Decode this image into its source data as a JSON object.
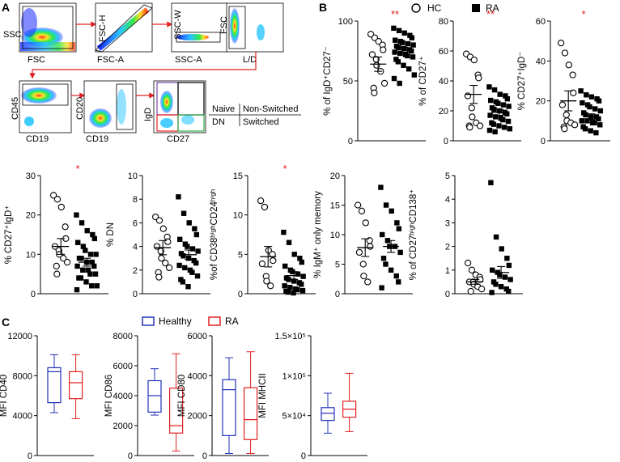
{
  "panel_labels": {
    "a": "A",
    "b": "B",
    "c": "C"
  },
  "flow": {
    "gates": [
      {
        "x": "FSC",
        "y": "SSC"
      },
      {
        "x": "FSC-A",
        "y": "FSC-H"
      },
      {
        "x": "SSC-A",
        "y": "SSC-W"
      },
      {
        "x": "L/D",
        "y": "FSC"
      },
      {
        "x": "CD19",
        "y": "CD45"
      },
      {
        "x": "CD19",
        "y": "CD20"
      },
      {
        "x": "CD27",
        "y": "IgD"
      }
    ],
    "quadrant_key": {
      "naive": "Naive",
      "non_switched": "Non-Switched",
      "dn": "DN",
      "switched": "Switched"
    },
    "colors": {
      "naive": "#7a3fb0",
      "non_switched": "#000000",
      "dn": "#e02020",
      "switched": "#2aa84a",
      "arrow": "#e02020"
    }
  },
  "legend_b": {
    "hc": "HC",
    "ra": "RA"
  },
  "legend_c": {
    "healthy": "Healthy",
    "ra": "RA",
    "healthy_color": "#2233bb",
    "ra_color": "#e02020"
  },
  "chart_data": [
    {
      "type": "scatter",
      "ylabel": "% of IgD⁺CD27⁻",
      "ylim": [
        0,
        100
      ],
      "yticks": [
        "0",
        "50",
        "100"
      ],
      "significance": "**",
      "series": [
        {
          "name": "HC",
          "values": [
            89,
            86,
            83,
            80,
            76,
            72,
            68,
            63,
            58,
            48,
            44,
            40
          ],
          "mean": 64,
          "sem": 6
        },
        {
          "name": "RA",
          "values": [
            94,
            92,
            90,
            88,
            86,
            84,
            83,
            82,
            81,
            80,
            79,
            78,
            77,
            76,
            75,
            74,
            73,
            72,
            71,
            70,
            68,
            66,
            63,
            60,
            55,
            52,
            48
          ],
          "mean": 76,
          "sem": 2
        }
      ]
    },
    {
      "type": "scatter",
      "ylabel": "% of CD27⁺",
      "ylim": [
        0,
        80
      ],
      "yticks": [
        "0",
        "20",
        "40",
        "60",
        "80"
      ],
      "significance": "**",
      "series": [
        {
          "name": "HC",
          "values": [
            58,
            56,
            54,
            44,
            42,
            30,
            22,
            16,
            12,
            10,
            10,
            9
          ],
          "mean": 31,
          "sem": 6
        },
        {
          "name": "RA",
          "values": [
            36,
            34,
            31,
            30,
            28,
            27,
            26,
            25,
            24,
            23,
            22,
            21,
            20,
            19,
            18,
            17,
            16,
            15,
            14,
            13,
            12,
            11,
            10,
            9,
            8,
            7,
            6
          ],
          "mean": 19,
          "sem": 2
        }
      ]
    },
    {
      "type": "scatter",
      "ylabel": "% CD27⁺IgD⁻",
      "ylim": [
        0,
        60
      ],
      "yticks": [
        "0",
        "20",
        "40",
        "60"
      ],
      "significance": "*",
      "series": [
        {
          "name": "HC",
          "values": [
            49,
            44,
            38,
            33,
            24,
            18,
            13,
            10,
            9,
            8,
            7,
            6
          ],
          "mean": 20,
          "sem": 5
        },
        {
          "name": "RA",
          "values": [
            25,
            23,
            22,
            21,
            20,
            19,
            18,
            17,
            16,
            15,
            14,
            13,
            12,
            12,
            11,
            10,
            10,
            9,
            9,
            8,
            7,
            6,
            5,
            4
          ],
          "mean": 12,
          "sem": 1.5
        }
      ]
    },
    {
      "type": "scatter",
      "ylabel": "% CD27⁺IgD⁺",
      "ylim": [
        0,
        30
      ],
      "yticks": [
        "0",
        "10",
        "20",
        "30"
      ],
      "significance": "*",
      "series": [
        {
          "name": "HC",
          "values": [
            25,
            24,
            22,
            17,
            14,
            12,
            11,
            10,
            9,
            8,
            7,
            5
          ],
          "mean": 12,
          "sem": 2
        },
        {
          "name": "RA",
          "values": [
            20,
            18,
            16,
            15,
            14,
            13,
            12,
            11,
            10,
            10,
            9,
            9,
            8,
            8,
            7,
            7,
            6,
            6,
            5,
            5,
            4,
            4,
            3,
            2,
            2,
            1
          ],
          "mean": 8,
          "sem": 1
        }
      ]
    },
    {
      "type": "scatter",
      "ylabel": "% DN",
      "ylim": [
        0,
        10
      ],
      "yticks": [
        "0",
        "2",
        "4",
        "6",
        "8",
        "10"
      ],
      "significance": "",
      "series": [
        {
          "name": "HC",
          "values": [
            6.5,
            6.2,
            5.5,
            4.8,
            4.4,
            4.0,
            3.6,
            3.0,
            2.6,
            2.2,
            1.8,
            1.4
          ],
          "mean": 3.9,
          "sem": 0.6
        },
        {
          "name": "RA",
          "values": [
            8.2,
            6.8,
            6.0,
            5.5,
            5.0,
            4.6,
            4.2,
            4.0,
            3.8,
            3.6,
            3.4,
            3.2,
            3.0,
            2.8,
            2.6,
            2.4,
            2.2,
            2.0,
            1.8,
            1.5,
            1.2,
            1.0,
            0.6
          ],
          "mean": 3.3,
          "sem": 0.4
        }
      ]
    },
    {
      "type": "scatter",
      "ylabel": "%of CD38ʰⁱᵍʰCD24ʰⁱᵍʰ",
      "ylim": [
        0,
        15
      ],
      "yticks": [
        "0",
        "5",
        "10",
        "15"
      ],
      "significance": "*",
      "series": [
        {
          "name": "HC",
          "values": [
            11.8,
            11.0,
            5.5,
            5.0,
            4.2,
            3.8,
            2.2,
            1.6,
            1.0
          ],
          "mean": 4.7,
          "sem": 1.3
        },
        {
          "name": "RA",
          "values": [
            7.8,
            6.5,
            5.0,
            4.5,
            4.0,
            3.5,
            3.0,
            2.8,
            2.5,
            2.2,
            2.0,
            1.8,
            1.6,
            1.4,
            1.2,
            1.0,
            0.8,
            0.6,
            0.5,
            0.4,
            0.3,
            0.2,
            0.1
          ],
          "mean": 2.3,
          "sem": 0.5
        }
      ]
    },
    {
      "type": "scatter",
      "ylabel": "% IgM⁺ only memory",
      "ylim": [
        0,
        20
      ],
      "yticks": [
        "0",
        "5",
        "10",
        "15",
        "20"
      ],
      "significance": "",
      "series": [
        {
          "name": "HC",
          "values": [
            15,
            14,
            12,
            9,
            8,
            7,
            5,
            3,
            2
          ],
          "mean": 7.8,
          "sem": 1.5
        },
        {
          "name": "RA",
          "values": [
            18,
            15,
            14,
            12,
            11,
            10,
            9,
            8,
            8,
            7,
            6,
            5,
            4,
            3,
            2,
            1
          ],
          "mean": 8,
          "sem": 1
        }
      ]
    },
    {
      "type": "scatter",
      "ylabel": "% of CD27ʰⁱᵍʰCD138⁺",
      "ylim": [
        0,
        5
      ],
      "yticks": [
        "0",
        "1",
        "2",
        "3",
        "4",
        "5"
      ],
      "significance": "",
      "series": [
        {
          "name": "HC",
          "values": [
            1.3,
            1.0,
            0.8,
            0.7,
            0.6,
            0.5,
            0.5,
            0.4,
            0.3,
            0.2,
            0.1
          ],
          "mean": 0.5,
          "sem": 0.1
        },
        {
          "name": "RA",
          "values": [
            4.7,
            2.4,
            1.9,
            1.5,
            1.2,
            1.0,
            0.9,
            0.8,
            0.7,
            0.6,
            0.5,
            0.4,
            0.3,
            0.2,
            0.1,
            0.05
          ],
          "mean": 0.9,
          "sem": 0.25
        }
      ]
    },
    {
      "type": "box",
      "ylabel": "MFI CD40",
      "ylim": [
        0,
        12000
      ],
      "yticks": [
        "0",
        "4000",
        "8000",
        "12000"
      ],
      "series": [
        {
          "name": "Healthy",
          "min": 4300,
          "q1": 5300,
          "median": 8400,
          "q3": 8800,
          "max": 10100
        },
        {
          "name": "RA",
          "min": 3700,
          "q1": 5700,
          "median": 7300,
          "q3": 8400,
          "max": 10100
        }
      ]
    },
    {
      "type": "box",
      "ylabel": "MFI CD86",
      "ylim": [
        0,
        8000
      ],
      "yticks": [
        "0",
        "2000",
        "4000",
        "6000",
        "8000"
      ],
      "series": [
        {
          "name": "Healthy",
          "min": 2700,
          "q1": 2900,
          "median": 4000,
          "q3": 5000,
          "max": 5800
        },
        {
          "name": "RA",
          "min": 300,
          "q1": 1500,
          "median": 2000,
          "q3": 4500,
          "max": 6800
        }
      ]
    },
    {
      "type": "box",
      "ylabel": "MFI CD80",
      "ylim": [
        0,
        6000
      ],
      "yticks": [
        "0",
        "2000",
        "4000",
        "6000"
      ],
      "series": [
        {
          "name": "Healthy",
          "min": 100,
          "q1": 1000,
          "median": 3300,
          "q3": 3800,
          "max": 4900
        },
        {
          "name": "RA",
          "min": 100,
          "q1": 800,
          "median": 1800,
          "q3": 3400,
          "max": 5200
        }
      ]
    },
    {
      "type": "box",
      "ylabel": "MFI MHCII",
      "ylim": [
        0,
        150000
      ],
      "yticks": [
        "0",
        "5×10⁴",
        "1×10⁵",
        "1.5×10⁵"
      ],
      "series": [
        {
          "name": "Healthy",
          "min": 28000,
          "q1": 44000,
          "median": 53000,
          "q3": 60000,
          "max": 78000
        },
        {
          "name": "RA",
          "min": 30000,
          "q1": 48000,
          "median": 58000,
          "q3": 68000,
          "max": 103000
        }
      ]
    }
  ]
}
